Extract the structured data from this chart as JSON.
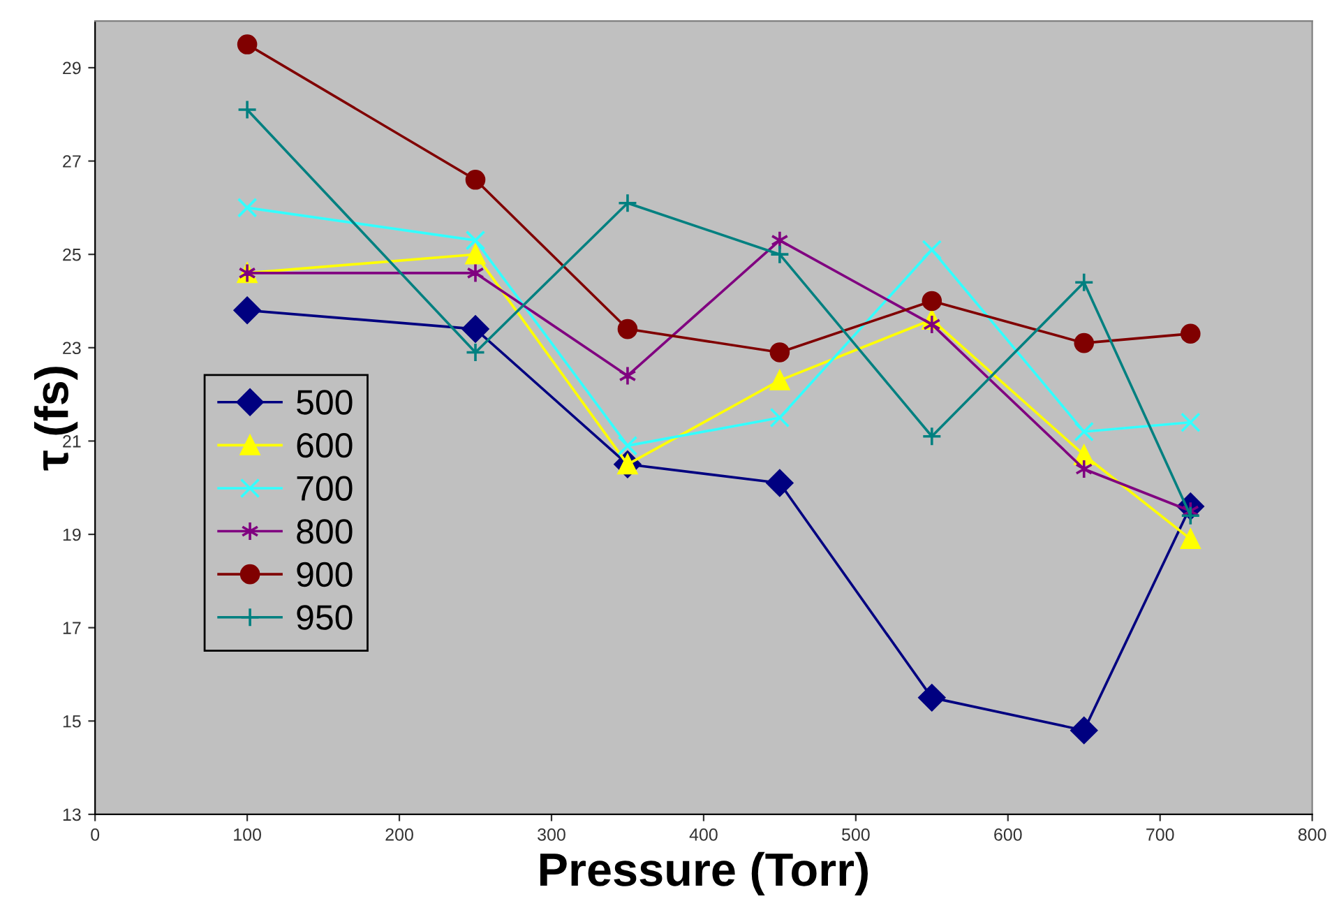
{
  "chart_data": {
    "type": "line",
    "xlabel": "Pressure (Torr)",
    "ylabel": "τ (fs)",
    "x": [
      100,
      250,
      350,
      450,
      550,
      650,
      720
    ],
    "xlim": [
      0,
      800
    ],
    "xticks": [
      0,
      100,
      200,
      300,
      400,
      500,
      600,
      700,
      800
    ],
    "ylim": [
      13,
      30
    ],
    "yticks": [
      13,
      15,
      17,
      19,
      21,
      23,
      25,
      27,
      29
    ],
    "grid": false,
    "legend": "left",
    "series": [
      {
        "name": "500",
        "color": "#000080",
        "marker": "diamond",
        "values": [
          23.8,
          23.4,
          20.5,
          20.1,
          15.5,
          14.8,
          19.6
        ]
      },
      {
        "name": "600",
        "color": "#ffff00",
        "marker": "triangle",
        "values": [
          24.6,
          25.0,
          20.5,
          22.3,
          23.6,
          20.7,
          18.9
        ]
      },
      {
        "name": "700",
        "color": "#33ffff",
        "marker": "x",
        "values": [
          26.0,
          25.3,
          20.9,
          21.5,
          25.1,
          21.2,
          21.4
        ]
      },
      {
        "name": "800",
        "color": "#800080",
        "marker": "cross",
        "values": [
          24.6,
          24.6,
          22.4,
          25.3,
          23.5,
          20.4,
          19.5
        ]
      },
      {
        "name": "900",
        "color": "#800000",
        "marker": "circle",
        "values": [
          29.5,
          26.6,
          23.4,
          22.9,
          24.0,
          23.1,
          23.3
        ]
      },
      {
        "name": "950",
        "color": "#008080",
        "marker": "plus",
        "values": [
          28.1,
          22.9,
          26.1,
          25.0,
          21.1,
          24.4,
          19.4
        ]
      }
    ]
  }
}
